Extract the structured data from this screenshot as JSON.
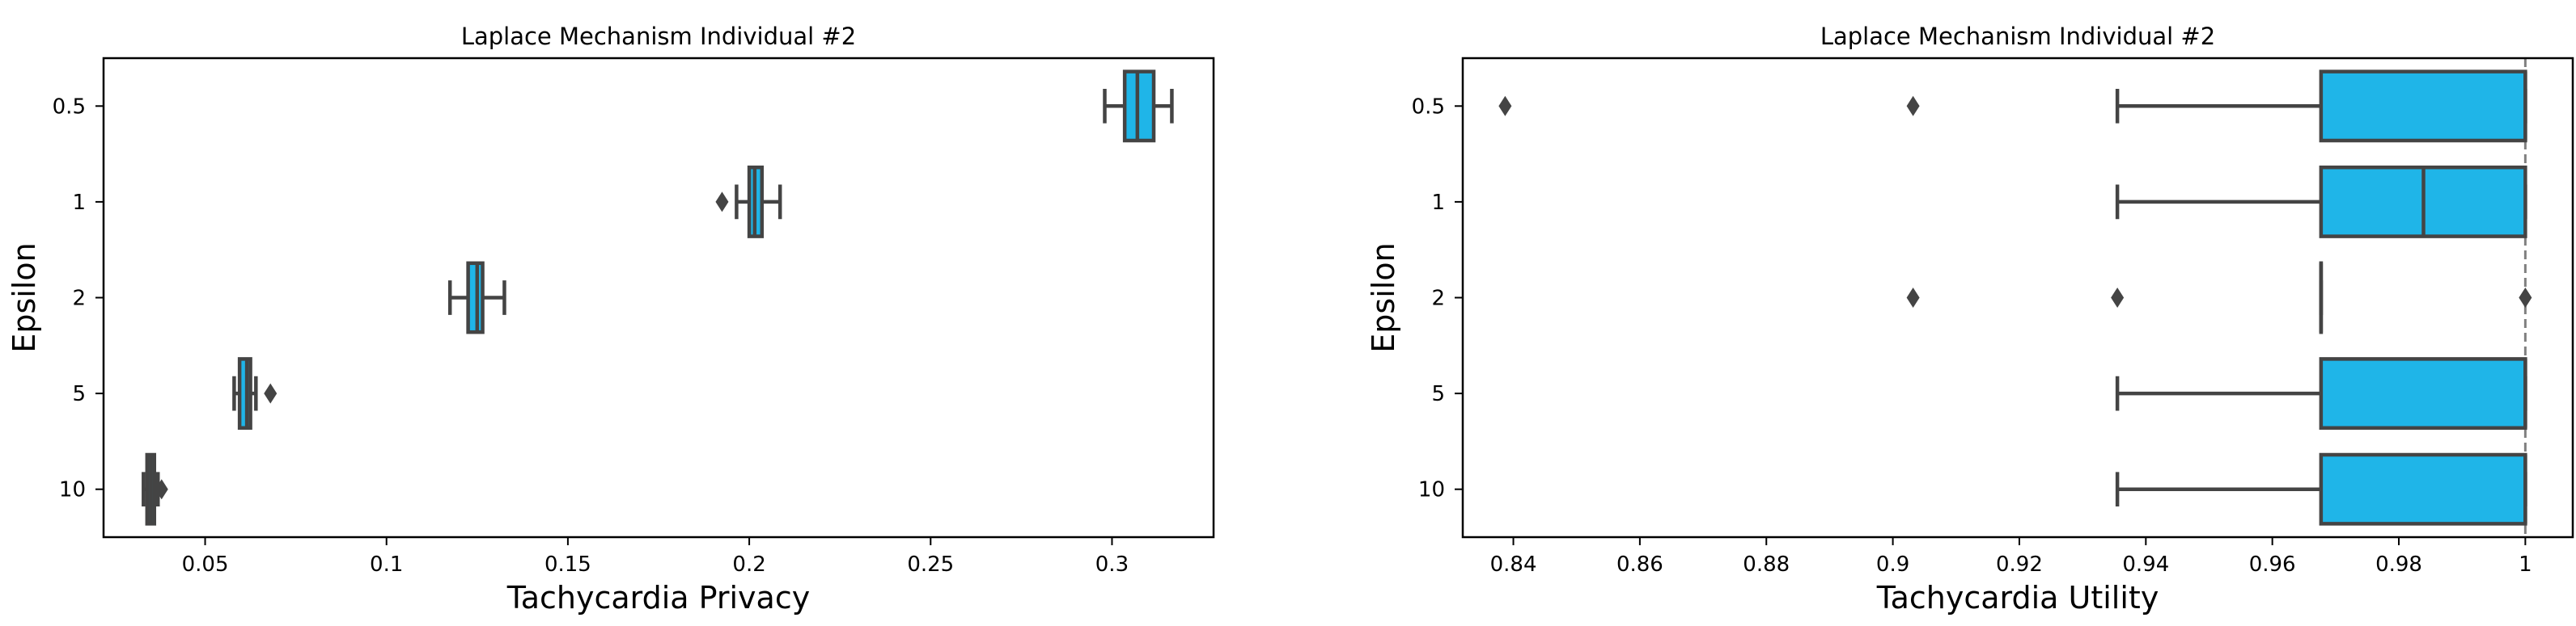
{
  "chart_data": [
    {
      "type": "boxplot",
      "title": "Laplace Mechanism Individual #2",
      "xlabel": "Tachycardia Privacy",
      "ylabel": "Epsilon",
      "xlim": [
        0.022,
        0.328
      ],
      "xticks": [
        0.05,
        0.1,
        0.15,
        0.2,
        0.25,
        0.3
      ],
      "xtick_labels": [
        "0.05",
        "0.1",
        "0.15",
        "0.2",
        "0.25",
        "0.3"
      ],
      "categories": [
        "0.5",
        "1",
        "2",
        "5",
        "10"
      ],
      "color": "#1fb5e8",
      "edge_color": "#444444",
      "boxes": [
        {
          "category": "0.5",
          "whislo": 0.298,
          "q1": 0.3035,
          "median": 0.307,
          "q3": 0.3115,
          "whishi": 0.3165,
          "fliers": []
        },
        {
          "category": "1",
          "whislo": 0.1965,
          "q1": 0.2,
          "median": 0.2015,
          "q3": 0.2035,
          "whishi": 0.2085,
          "fliers": [
            0.1925
          ]
        },
        {
          "category": "2",
          "whislo": 0.1175,
          "q1": 0.1225,
          "median": 0.125,
          "q3": 0.1265,
          "whishi": 0.1325,
          "fliers": []
        },
        {
          "category": "5",
          "whislo": 0.058,
          "q1": 0.0595,
          "median": 0.0615,
          "q3": 0.0625,
          "whishi": 0.064,
          "fliers": [
            0.068
          ]
        },
        {
          "category": "10",
          "whislo": 0.033,
          "q1": 0.034,
          "median": 0.035,
          "q3": 0.036,
          "whishi": 0.037,
          "fliers": [
            0.038
          ]
        }
      ]
    },
    {
      "type": "boxplot",
      "title": "Laplace Mechanism Individual #2",
      "xlabel": "Tachycardia Utility",
      "ylabel": "Epsilon",
      "xlim": [
        0.832,
        1.0075
      ],
      "xticks": [
        0.84,
        0.86,
        0.88,
        0.9,
        0.92,
        0.94,
        0.96,
        0.98,
        1.0
      ],
      "xtick_labels": [
        "0.84",
        "0.86",
        "0.88",
        "0.9",
        "0.92",
        "0.94",
        "0.96",
        "0.98",
        "1"
      ],
      "categories": [
        "0.5",
        "1",
        "2",
        "5",
        "10"
      ],
      "color": "#1fb5e8",
      "edge_color": "#444444",
      "reference_line": {
        "x": 1.0,
        "style": "dashed",
        "color": "#808080"
      },
      "boxes": [
        {
          "category": "0.5",
          "whislo": 0.9355,
          "q1": 0.9677,
          "median": 1.0,
          "q3": 1.0,
          "whishi": 1.0,
          "fliers": [
            0.8387,
            0.9032
          ]
        },
        {
          "category": "1",
          "whislo": 0.9355,
          "q1": 0.9677,
          "median": 0.9839,
          "q3": 1.0,
          "whishi": 1.0,
          "fliers": []
        },
        {
          "category": "2",
          "whislo": 0.9677,
          "q1": 0.9677,
          "median": 0.9677,
          "q3": 0.9677,
          "whishi": 0.9677,
          "fliers": [
            0.9032,
            0.9355,
            1.0
          ]
        },
        {
          "category": "5",
          "whislo": 0.9355,
          "q1": 0.9677,
          "median": 1.0,
          "q3": 1.0,
          "whishi": 1.0,
          "fliers": []
        },
        {
          "category": "10",
          "whislo": 0.9355,
          "q1": 0.9677,
          "median": 1.0,
          "q3": 1.0,
          "whishi": 1.0,
          "fliers": []
        }
      ]
    }
  ]
}
